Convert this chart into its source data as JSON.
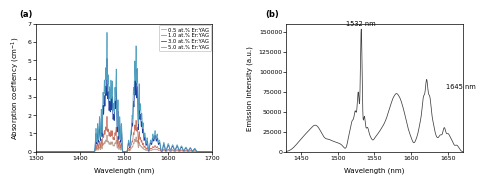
{
  "panel_a": {
    "xlabel": "Wavelength (nm)",
    "ylabel": "Absorption coeffiency (cm$^{-1}$)",
    "xlim": [
      1300,
      1700
    ],
    "ylim": [
      0,
      7
    ],
    "yticks": [
      0,
      1,
      2,
      3,
      4,
      5,
      6,
      7
    ],
    "xticks": [
      1300,
      1400,
      1500,
      1600,
      1700
    ],
    "label": "(a)",
    "legend": [
      "0.5 at.% Er:YAG",
      "1.0 at.% Er:YAG",
      "3.0 at.% Er:YAG",
      "5.0 at.% Er:YAG"
    ],
    "colors": [
      "#b8a090",
      "#c87060",
      "#2040a0",
      "#50a0c0"
    ],
    "scales": [
      0.18,
      0.38,
      1.0,
      1.28
    ]
  },
  "panel_b": {
    "xlabel": "Wavelength (nm)",
    "ylabel": "Emission intensity (a.u.)",
    "xlim": [
      1430,
      1670
    ],
    "ylim": [
      0,
      160000
    ],
    "yticks": [
      0,
      25000,
      50000,
      75000,
      100000,
      125000,
      150000
    ],
    "ytick_labels": [
      "0",
      "25000",
      "50000",
      "75000",
      "100000",
      "125000",
      "150000"
    ],
    "xticks": [
      1450,
      1500,
      1550,
      1600,
      1650
    ],
    "label": "(b)",
    "ann1_text": "1532 nm",
    "ann1_x": 1532,
    "ann1_y": 150000,
    "ann2_text": "1645 nm",
    "ann2_x": 1648,
    "ann2_y": 82000
  },
  "fig_bg": "#ffffff",
  "ax_bg": "#ffffff",
  "line_color_b": "#404040"
}
